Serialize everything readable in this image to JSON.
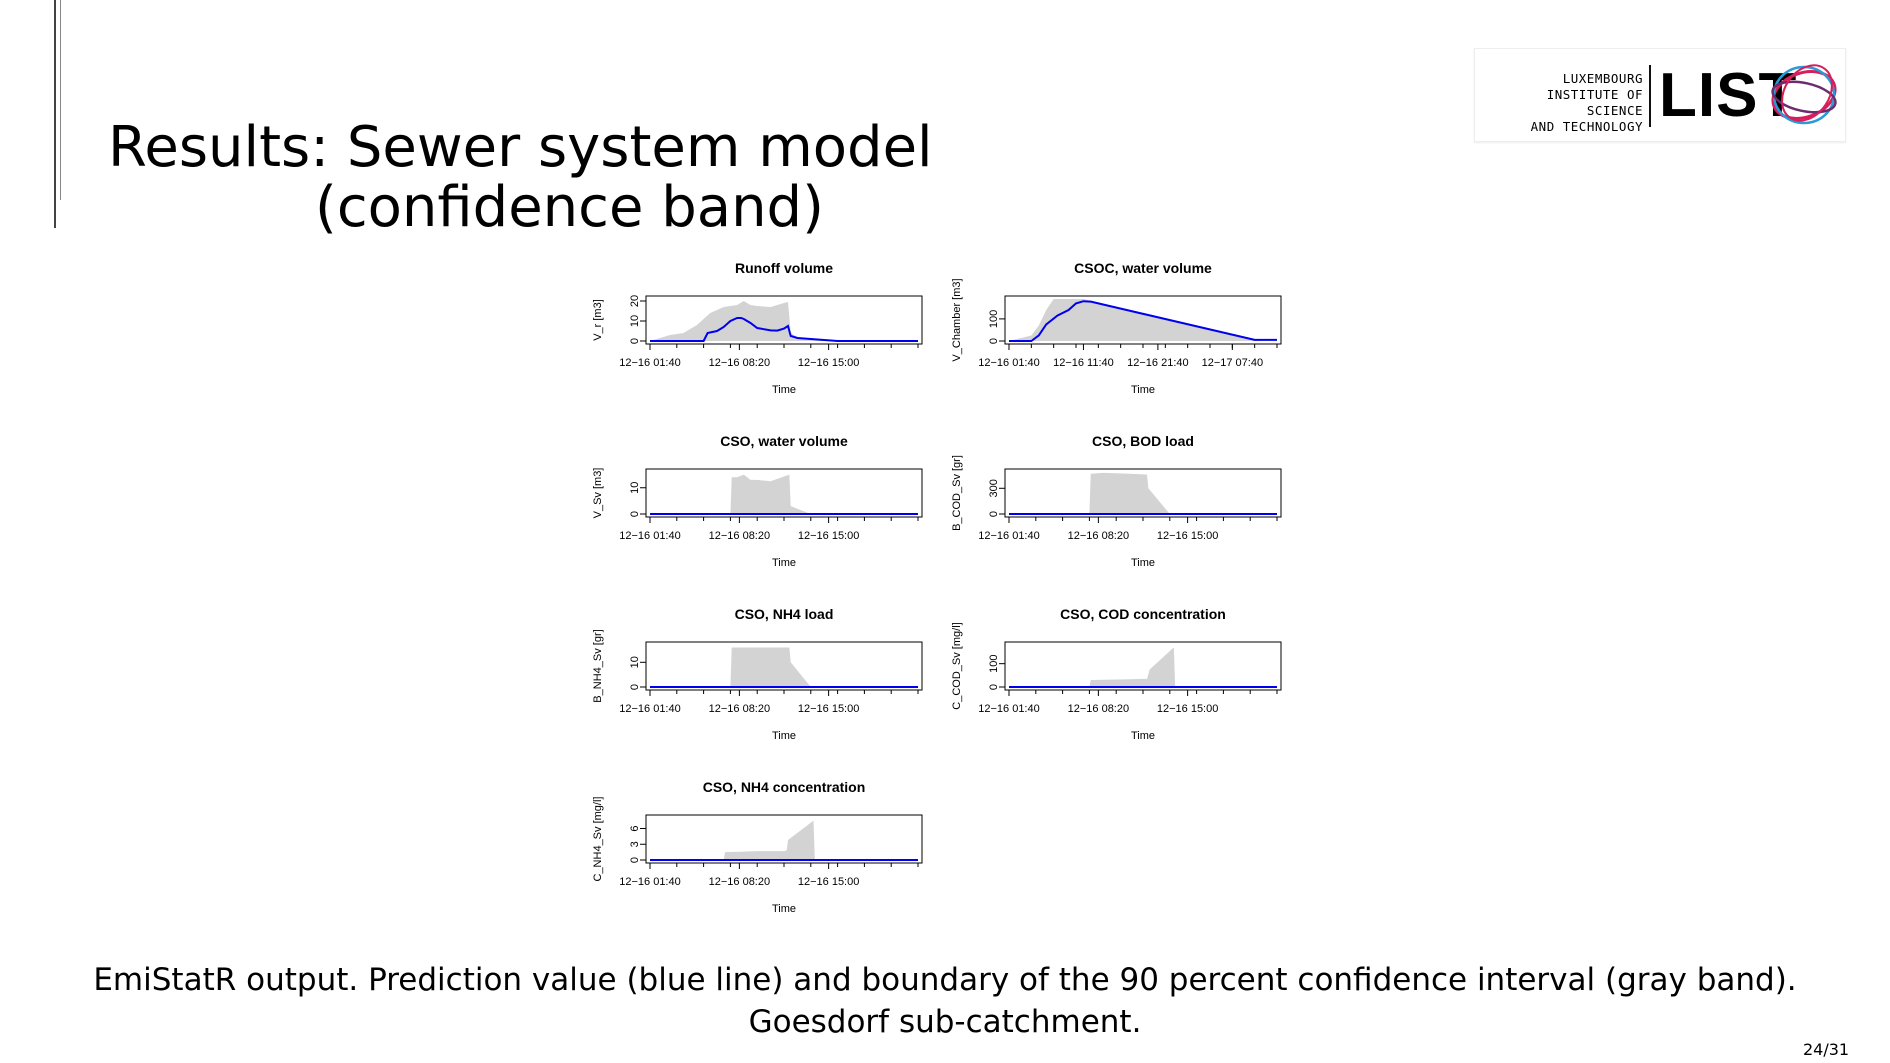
{
  "slide": {
    "title_line1": "Results: Sewer system model",
    "title_line2": "(confidence band)",
    "caption_line1": "EmiStatR output. Prediction value (blue line) and boundary of the 90 percent confidence interval (gray band).",
    "caption_line2": "Goesdorf sub-catchment.",
    "page_number": "24/31"
  },
  "logo": {
    "line1": "LUXEMBOURG",
    "line2": "INSTITUTE OF SCIENCE",
    "line3": "AND TECHNOLOGY",
    "brand": "LIST"
  },
  "colors": {
    "band": "#d3d3d3",
    "prediction": "#0000ee",
    "ring1": "#d61f5c",
    "ring2": "#2a9bd6",
    "ring3": "#6b2d6e"
  },
  "chart_data": [
    {
      "type": "area",
      "title": "Runoff volume",
      "xlabel": "Time",
      "ylabel": "V_r [m3]",
      "x_tick_labels": [
        "12−16 01:40",
        "12−16 08:20",
        "12−16 15:00"
      ],
      "y_ticks": [
        0,
        10,
        20
      ],
      "ylim": [
        0,
        21
      ],
      "xlim_hours": [
        0,
        20
      ],
      "x_tick_hours": [
        0,
        6.67,
        13.33
      ],
      "band": {
        "x": [
          0,
          1.5,
          2.5,
          3.5,
          4.5,
          5.5,
          6.5,
          7,
          7.5,
          8,
          9,
          10,
          10.3,
          10.5,
          11,
          12,
          13,
          20
        ],
        "lower": [
          0,
          0,
          0,
          0,
          0,
          0,
          0,
          0,
          0,
          0,
          0,
          0,
          0,
          0,
          0,
          0,
          0,
          0
        ],
        "upper": [
          0,
          3,
          4,
          8,
          14,
          17,
          18,
          20,
          18,
          17.5,
          17,
          19,
          19.5,
          4,
          2,
          1,
          0.5,
          0
        ]
      },
      "prediction": {
        "x": [
          0,
          4,
          4.3,
          5,
          5.5,
          6,
          6.5,
          6.8,
          7,
          7.5,
          8,
          9,
          9.5,
          10,
          10.3,
          10.5,
          11,
          12,
          13,
          14,
          20
        ],
        "y": [
          0,
          0,
          4,
          5,
          7,
          10,
          11.5,
          11.5,
          11,
          9,
          6.5,
          5.3,
          5.2,
          6.2,
          7.5,
          2.5,
          1.5,
          1,
          0.5,
          0,
          0
        ]
      }
    },
    {
      "type": "area",
      "title": "CSOC, water volume",
      "xlabel": "Time",
      "ylabel": "V_Chamber [m3]",
      "x_tick_labels": [
        "12−16 01:40",
        "12−16 11:40",
        "12−16 21:40",
        "12−17 07:40"
      ],
      "y_ticks": [
        0,
        100
      ],
      "ylim": [
        0,
        190
      ],
      "xlim_hours": [
        0,
        36
      ],
      "x_tick_hours": [
        0,
        10,
        20,
        30
      ],
      "band": {
        "x": [
          0,
          3,
          4,
          5,
          6,
          8,
          10,
          34,
          36
        ],
        "lower": [
          0,
          0,
          0,
          0,
          0,
          0,
          0,
          0,
          0
        ],
        "upper": [
          0,
          25,
          70,
          140,
          190,
          190,
          190,
          0,
          0
        ]
      },
      "prediction": {
        "x": [
          0,
          3,
          4,
          5,
          6.5,
          8,
          9,
          10,
          11,
          33,
          36
        ],
        "y": [
          0,
          0,
          25,
          75,
          115,
          140,
          170,
          180,
          178,
          5,
          5
        ]
      }
    },
    {
      "type": "area",
      "title": "CSO, water volume",
      "xlabel": "Time",
      "ylabel": "V_Sv [m3]",
      "x_tick_labels": [
        "12−16 01:40",
        "12−16 08:20",
        "12−16 15:00"
      ],
      "y_ticks": [
        0,
        10
      ],
      "ylim": [
        0,
        16
      ],
      "xlim_hours": [
        0,
        20
      ],
      "x_tick_hours": [
        0,
        6.67,
        13.33
      ],
      "band": {
        "x": [
          0,
          6,
          6.1,
          6.5,
          7,
          7.5,
          8,
          9,
          10.4,
          10.5,
          12,
          20
        ],
        "lower": [
          0,
          0,
          0,
          0,
          0,
          0,
          0,
          0,
          0,
          0,
          0,
          0
        ],
        "upper": [
          0,
          0,
          14,
          14,
          15,
          13,
          13,
          12.5,
          15,
          3,
          0,
          0
        ]
      },
      "prediction": {
        "x": [
          0,
          20
        ],
        "y": [
          0,
          0
        ]
      }
    },
    {
      "type": "area",
      "title": "CSO, BOD load",
      "xlabel": "Time",
      "ylabel": "B_COD_Sv [gr]",
      "x_tick_labels": [
        "12−16 01:40",
        "12−16 08:20",
        "12−16 15:00"
      ],
      "y_ticks": [
        0,
        300
      ],
      "ylim": [
        0,
        490
      ],
      "xlim_hours": [
        0,
        20
      ],
      "x_tick_hours": [
        0,
        6.67,
        13.33
      ],
      "band": {
        "x": [
          0,
          6,
          6.1,
          7,
          8,
          9,
          10.3,
          10.4,
          12,
          20
        ],
        "lower": [
          0,
          0,
          0,
          0,
          0,
          0,
          0,
          0,
          0,
          0
        ],
        "upper": [
          0,
          0,
          470,
          480,
          475,
          470,
          460,
          300,
          0,
          0
        ]
      },
      "prediction": {
        "x": [
          0,
          20
        ],
        "y": [
          0,
          0
        ]
      }
    },
    {
      "type": "area",
      "title": "CSO, NH4 load",
      "xlabel": "Time",
      "ylabel": "B_NH4_Sv [gr]",
      "x_tick_labels": [
        "12−16 01:40",
        "12−16 08:20",
        "12−16 15:00"
      ],
      "y_ticks": [
        0,
        10
      ],
      "ylim": [
        0,
        17
      ],
      "xlim_hours": [
        0,
        20
      ],
      "x_tick_hours": [
        0,
        6.67,
        13.33
      ],
      "band": {
        "x": [
          0,
          6,
          6.1,
          7,
          8,
          10.4,
          10.5,
          12,
          20
        ],
        "lower": [
          0,
          0,
          0,
          0,
          0,
          0,
          0,
          0,
          0
        ],
        "upper": [
          0,
          0,
          16,
          16,
          16,
          16,
          10,
          0,
          0
        ]
      },
      "prediction": {
        "x": [
          0,
          20
        ],
        "y": [
          0,
          0
        ]
      }
    },
    {
      "type": "area",
      "title": "CSO, COD concentration",
      "xlabel": "Time",
      "ylabel": "C_COD_Sv [mg/l]",
      "x_tick_labels": [
        "12−16 01:40",
        "12−16 08:20",
        "12−16 15:00"
      ],
      "y_ticks": [
        0,
        100
      ],
      "ylim": [
        0,
        180
      ],
      "xlim_hours": [
        0,
        20
      ],
      "x_tick_hours": [
        0,
        6.67,
        13.33
      ],
      "band": {
        "x": [
          0,
          6,
          6.1,
          8,
          9,
          10,
          10.3,
          10.5,
          12.3,
          12.4,
          20
        ],
        "lower": [
          0,
          0,
          0,
          0,
          0,
          0,
          0,
          0,
          0,
          0,
          0
        ],
        "upper": [
          0,
          0,
          30,
          32,
          33,
          35,
          35,
          75,
          170,
          0,
          0
        ]
      },
      "prediction": {
        "x": [
          0,
          20
        ],
        "y": [
          0,
          0
        ]
      }
    },
    {
      "type": "area",
      "title": "CSO, NH4 concentration",
      "xlabel": "Time",
      "ylabel": "C_NH4_Sv [mg/l]",
      "x_tick_labels": [
        "12−16 01:40",
        "12−16 08:20",
        "12−16 15:00"
      ],
      "y_ticks": [
        0,
        3,
        6
      ],
      "ylim": [
        0,
        8
      ],
      "xlim_hours": [
        0,
        20
      ],
      "x_tick_hours": [
        0,
        6.67,
        13.33
      ],
      "band": {
        "x": [
          0,
          5.5,
          5.6,
          7,
          8,
          10,
          10.2,
          10.3,
          12.2,
          12.3,
          20
        ],
        "lower": [
          0,
          0,
          0,
          0,
          0,
          0,
          0,
          0,
          0,
          0,
          0
        ],
        "upper": [
          0,
          0,
          1.5,
          1.6,
          1.7,
          1.7,
          1.8,
          3.8,
          7.5,
          0,
          0
        ]
      },
      "prediction": {
        "x": [
          0,
          20
        ],
        "y": [
          0,
          0
        ]
      }
    }
  ]
}
